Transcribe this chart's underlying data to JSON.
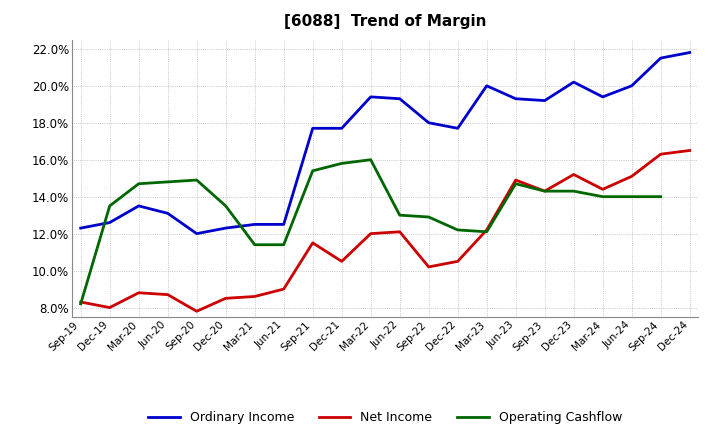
{
  "title": "[6088]  Trend of Margin",
  "x_labels": [
    "Sep-19",
    "Dec-19",
    "Mar-20",
    "Jun-20",
    "Sep-20",
    "Dec-20",
    "Mar-21",
    "Jun-21",
    "Sep-21",
    "Dec-21",
    "Mar-22",
    "Jun-22",
    "Sep-22",
    "Dec-22",
    "Mar-23",
    "Jun-23",
    "Sep-23",
    "Dec-23",
    "Mar-24",
    "Jun-24",
    "Sep-24",
    "Dec-24"
  ],
  "ordinary_income": [
    12.3,
    12.6,
    13.5,
    13.1,
    12.0,
    12.3,
    12.5,
    12.5,
    17.7,
    17.7,
    19.4,
    19.3,
    18.0,
    17.7,
    20.0,
    19.3,
    19.2,
    20.2,
    19.4,
    20.0,
    21.5,
    21.8
  ],
  "net_income": [
    8.3,
    8.0,
    8.8,
    8.7,
    7.8,
    8.5,
    8.6,
    9.0,
    11.5,
    10.5,
    12.0,
    12.1,
    10.2,
    10.5,
    12.2,
    14.9,
    14.3,
    15.2,
    14.4,
    15.1,
    16.3,
    16.5
  ],
  "operating_cashflow": [
    8.2,
    13.5,
    14.7,
    14.8,
    14.9,
    13.5,
    11.4,
    11.4,
    15.4,
    15.8,
    16.0,
    13.0,
    12.9,
    12.2,
    12.1,
    14.7,
    14.3,
    14.3,
    14.0,
    14.0,
    14.0,
    null
  ],
  "ordinary_income_color": "#0000cc",
  "net_income_color": "#cc0000",
  "operating_cashflow_color": "#006600",
  "bg_color": "#ffffff",
  "grid_color": "#999999",
  "ylim": [
    7.5,
    22.5
  ],
  "yticks": [
    8.0,
    10.0,
    12.0,
    14.0,
    16.0,
    18.0,
    20.0,
    22.0
  ]
}
